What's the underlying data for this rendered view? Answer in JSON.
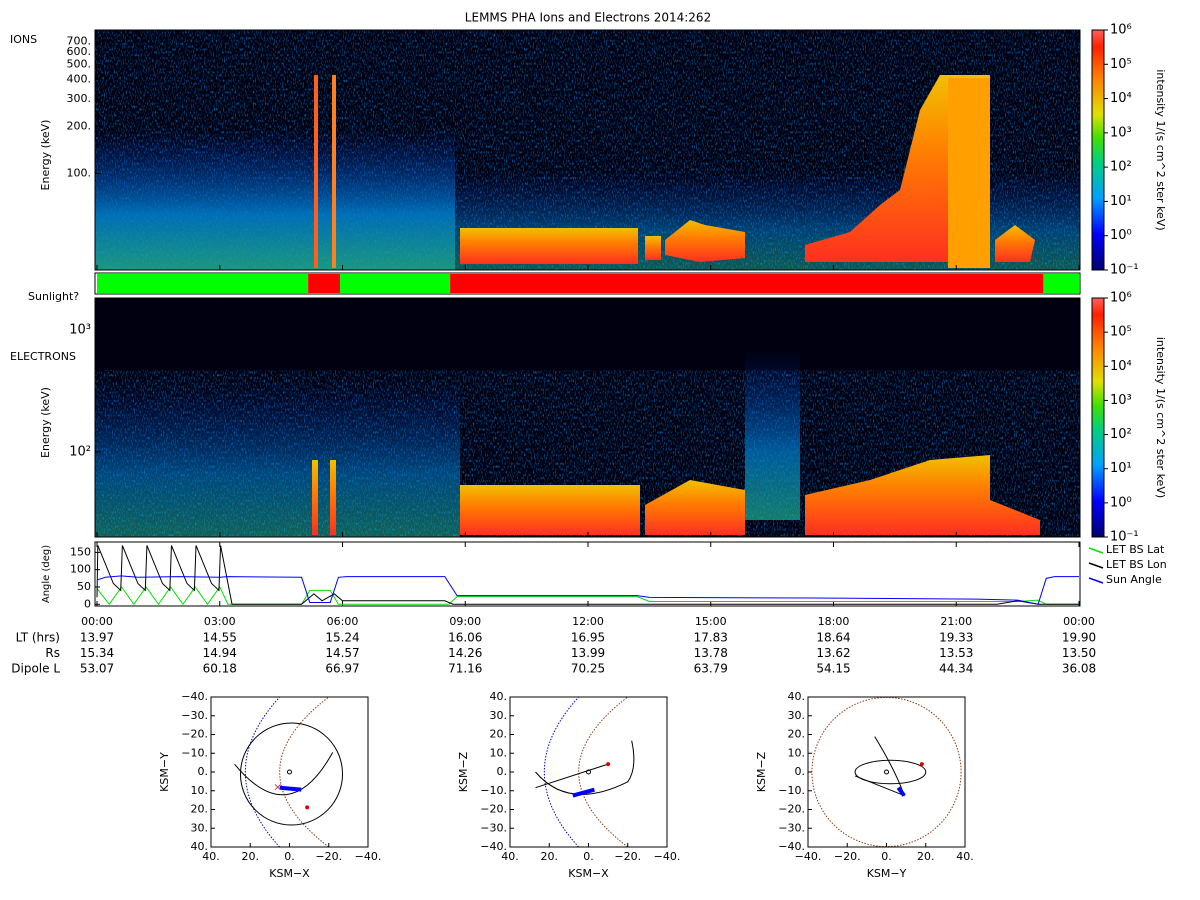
{
  "chart_data": [
    {
      "type": "spectrogram",
      "title": "LEMMS PHA Ions and Electrons  2014:262",
      "label": "IONS",
      "y_label": "Energy (keV)",
      "log_scale": true,
      "ylim": [
        24,
        830
      ],
      "yticks": [
        {
          "value": 100,
          "label": "100."
        },
        {
          "value": 200,
          "label": "200."
        },
        {
          "value": 300,
          "label": "300."
        },
        {
          "value": 400,
          "label": "400."
        },
        {
          "value": 500,
          "label": "500."
        },
        {
          "value": 600,
          "label": "600."
        },
        {
          "value": 700,
          "label": "700."
        }
      ],
      "colorbar": {
        "label": "intensity 1/(s cm^2 ster keV)",
        "log_scale": true,
        "lim": [
          0.1,
          1000000
        ],
        "ticks": [
          {
            "value": 0.1,
            "label": "10⁻¹"
          },
          {
            "value": 1,
            "label": "10⁰"
          },
          {
            "value": 10,
            "label": "10¹"
          },
          {
            "value": 100,
            "label": "10²"
          },
          {
            "value": 1000,
            "label": "10³"
          },
          {
            "value": 10000,
            "label": "10⁴"
          },
          {
            "value": 100000,
            "label": "10⁵"
          },
          {
            "value": 1000000,
            "label": "10⁶"
          }
        ]
      }
    },
    {
      "type": "timeline",
      "label": "Sunlight?",
      "xlim": [
        0,
        24
      ],
      "segments": [
        {
          "start": 0,
          "end": 5.16,
          "color": "#00ff00"
        },
        {
          "start": 5.16,
          "end": 5.94,
          "color": "#ff0000"
        },
        {
          "start": 5.94,
          "end": 8.63,
          "color": "#00ff00"
        },
        {
          "start": 8.63,
          "end": 23.13,
          "color": "#ff0000"
        },
        {
          "start": 23.13,
          "end": 24,
          "color": "#00ff00"
        }
      ]
    },
    {
      "type": "spectrogram",
      "label": "ELECTRONS",
      "y_label": "Energy (keV)",
      "log_scale": true,
      "ylim": [
        20,
        1830
      ],
      "yticks": [
        {
          "value": 100,
          "label": "10²"
        },
        {
          "value": 1000,
          "label": "10³"
        }
      ],
      "colorbar": {
        "label": "intensity 1/(s cm^2 ster keV)",
        "log_scale": true,
        "lim": [
          0.1,
          1000000
        ],
        "ticks": [
          {
            "value": 0.1,
            "label": "10⁻¹"
          },
          {
            "value": 1,
            "label": "10⁰"
          },
          {
            "value": 10,
            "label": "10¹"
          },
          {
            "value": 100,
            "label": "10²"
          },
          {
            "value": 1000,
            "label": "10³"
          },
          {
            "value": 10000,
            "label": "10⁴"
          },
          {
            "value": 100000,
            "label": "10⁵"
          },
          {
            "value": 1000000,
            "label": "10⁶"
          }
        ]
      }
    },
    {
      "type": "line",
      "y_label": "Angle (deg)",
      "xlim": [
        0,
        24
      ],
      "ylim": [
        -5,
        180
      ],
      "yticks": [
        0,
        50,
        100,
        150
      ],
      "xticks": [
        {
          "value": 0,
          "label": "00:00"
        },
        {
          "value": 3,
          "label": "03:00"
        },
        {
          "value": 6,
          "label": "06:00"
        },
        {
          "value": 9,
          "label": "09:00"
        },
        {
          "value": 12,
          "label": "12:00"
        },
        {
          "value": 15,
          "label": "15:00"
        },
        {
          "value": 18,
          "label": "18:00"
        },
        {
          "value": 21,
          "label": "21:00"
        },
        {
          "value": 24,
          "label": "00:00"
        }
      ],
      "series": [
        {
          "name": "LET BS Lat",
          "color": "#00e000",
          "x": [
            0,
            0.3,
            0.6,
            0.9,
            1.2,
            1.5,
            1.8,
            2.1,
            2.4,
            2.7,
            3.0,
            3.2,
            5.0,
            5.2,
            5.7,
            5.9,
            8.6,
            8.8,
            13.2,
            13.5,
            22.5,
            23.0,
            23.2,
            24
          ],
          "values": [
            45,
            0,
            50,
            0,
            50,
            0,
            50,
            0,
            50,
            0,
            50,
            0,
            0,
            40,
            40,
            0,
            0,
            22,
            22,
            8,
            8,
            12,
            0,
            0
          ]
        },
        {
          "name": "LET BS Lon",
          "color": "#000000",
          "x": [
            0,
            0.02,
            0.4,
            0.58,
            0.62,
            1.0,
            1.18,
            1.22,
            1.6,
            1.78,
            1.82,
            2.2,
            2.38,
            2.42,
            2.8,
            2.98,
            3.02,
            3.3,
            5.0,
            5.3,
            5.5,
            5.8,
            6.0,
            8.5,
            8.7,
            22.0,
            22.5,
            23.0,
            24
          ],
          "values": [
            20,
            170,
            60,
            40,
            170,
            60,
            40,
            170,
            60,
            40,
            170,
            60,
            40,
            170,
            60,
            40,
            170,
            0,
            0,
            30,
            10,
            30,
            10,
            10,
            0,
            0,
            10,
            0,
            0
          ]
        },
        {
          "name": "Sun Angle",
          "color": "#0000ff",
          "x": [
            0,
            0.2,
            0.6,
            1.0,
            2.0,
            3.0,
            3.2,
            5.0,
            5.2,
            5.7,
            5.9,
            6.1,
            8.5,
            8.8,
            13.2,
            13.5,
            17.5,
            21.5,
            22.5,
            23.0,
            23.2,
            23.4,
            24
          ],
          "values": [
            70,
            78,
            82,
            78,
            80,
            78,
            80,
            78,
            5,
            5,
            78,
            80,
            80,
            25,
            25,
            20,
            18,
            15,
            12,
            0,
            75,
            80,
            80
          ]
        }
      ]
    },
    {
      "type": "table",
      "rows": [
        {
          "label": "LT (hrs)",
          "values": [
            "13.97",
            "14.55",
            "15.24",
            "16.06",
            "16.95",
            "17.83",
            "18.64",
            "19.33",
            "19.90"
          ]
        },
        {
          "label": "Rs",
          "values": [
            "15.34",
            "14.94",
            "14.57",
            "14.26",
            "13.99",
            "13.78",
            "13.62",
            "13.53",
            "13.50"
          ]
        },
        {
          "label": "Dipole L",
          "values": [
            "53.07",
            "60.18",
            "66.97",
            "71.16",
            "70.25",
            "63.79",
            "54.15",
            "44.34",
            "36.08"
          ]
        }
      ]
    },
    {
      "type": "orbit",
      "x_label": "KSM−X",
      "y_label": "KSM−Y",
      "xlim": [
        40,
        -40
      ],
      "ylim": [
        40,
        -40
      ],
      "xticks": [
        {
          "value": 40,
          "label": "40."
        },
        {
          "value": 20,
          "label": "20."
        },
        {
          "value": 0,
          "label": "0."
        },
        {
          "value": -20,
          "label": "−20."
        },
        {
          "value": -40,
          "label": "−40."
        }
      ],
      "yticks": [
        {
          "value": -40,
          "label": "−40."
        },
        {
          "value": -30,
          "label": "−30."
        },
        {
          "value": -20,
          "label": "−20."
        },
        {
          "value": -10,
          "label": "−10."
        },
        {
          "value": 0,
          "label": "0."
        },
        {
          "value": 10,
          "label": "10."
        },
        {
          "value": 20,
          "label": "20."
        },
        {
          "value": 30,
          "label": "30."
        },
        {
          "value": 40,
          "label": "40."
        }
      ]
    },
    {
      "type": "orbit",
      "x_label": "KSM−X",
      "y_label": "KSM−Z",
      "xlim": [
        40,
        -40
      ],
      "ylim": [
        -40,
        40
      ],
      "xticks": [
        {
          "value": 40,
          "label": "40."
        },
        {
          "value": 20,
          "label": "20."
        },
        {
          "value": 0,
          "label": "0."
        },
        {
          "value": -20,
          "label": "−20."
        },
        {
          "value": -40,
          "label": "−40."
        }
      ],
      "yticks": [
        {
          "value": 40,
          "label": "40."
        },
        {
          "value": 30,
          "label": "30."
        },
        {
          "value": 20,
          "label": "20."
        },
        {
          "value": 10,
          "label": "10."
        },
        {
          "value": 0,
          "label": "0."
        },
        {
          "value": -10,
          "label": "−10."
        },
        {
          "value": -20,
          "label": "−20."
        },
        {
          "value": -30,
          "label": "−30."
        },
        {
          "value": -40,
          "label": "−40."
        }
      ]
    },
    {
      "type": "orbit",
      "x_label": "KSM−Y",
      "y_label": "KSM−Z",
      "xlim": [
        -40,
        40
      ],
      "ylim": [
        -40,
        40
      ],
      "xticks": [
        {
          "value": -40,
          "label": "−40."
        },
        {
          "value": -20,
          "label": "−20."
        },
        {
          "value": 0,
          "label": "0."
        },
        {
          "value": 20,
          "label": "20."
        },
        {
          "value": 40,
          "label": "40."
        }
      ],
      "yticks": [
        {
          "value": 40,
          "label": "40."
        },
        {
          "value": 30,
          "label": "30."
        },
        {
          "value": 20,
          "label": "20."
        },
        {
          "value": 10,
          "label": "10."
        },
        {
          "value": 0,
          "label": "0."
        },
        {
          "value": -10,
          "label": "−10."
        },
        {
          "value": -20,
          "label": "−20."
        },
        {
          "value": -30,
          "label": "−30."
        },
        {
          "value": -40,
          "label": "−40."
        }
      ]
    }
  ]
}
